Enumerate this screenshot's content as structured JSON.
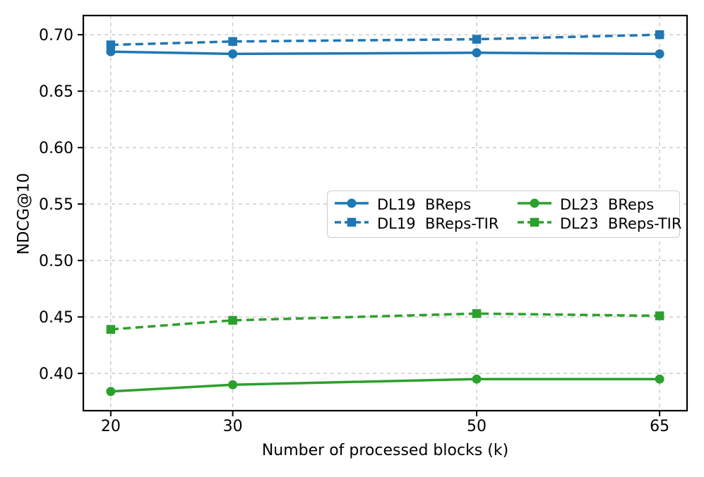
{
  "chart_data": {
    "type": "line",
    "title": "",
    "xlabel": "Number of processed blocks (k)",
    "ylabel": "NDCG@10",
    "x": [
      20,
      30,
      50,
      65
    ],
    "xticks": [
      20,
      30,
      50,
      65
    ],
    "yticks": [
      0.4,
      0.45,
      0.5,
      0.55,
      0.6,
      0.65,
      0.7
    ],
    "xlim": [
      17.75,
      67.25
    ],
    "ylim": [
      0.367,
      0.717
    ],
    "grid": true,
    "grid_style": "dashed",
    "legend_position": "center-right",
    "legend_columns": 2,
    "series": [
      {
        "name": "DL19  BReps",
        "color": "#1f77b4",
        "linestyle": "solid",
        "marker": "circle",
        "values": [
          0.685,
          0.683,
          0.684,
          0.683
        ]
      },
      {
        "name": "DL19  BReps-TIR",
        "color": "#1f77b4",
        "linestyle": "dashed",
        "marker": "square",
        "values": [
          0.691,
          0.694,
          0.696,
          0.7
        ]
      },
      {
        "name": "DL23  BReps",
        "color": "#2ca02c",
        "linestyle": "solid",
        "marker": "circle",
        "values": [
          0.384,
          0.39,
          0.395,
          0.395
        ]
      },
      {
        "name": "DL23  BReps-TIR",
        "color": "#2ca02c",
        "linestyle": "dashed",
        "marker": "square",
        "values": [
          0.439,
          0.447,
          0.453,
          0.451
        ]
      }
    ],
    "colors": {
      "grid": "#cccccc",
      "axis": "#000000",
      "tick_label": "#000000",
      "background": "#ffffff"
    }
  }
}
